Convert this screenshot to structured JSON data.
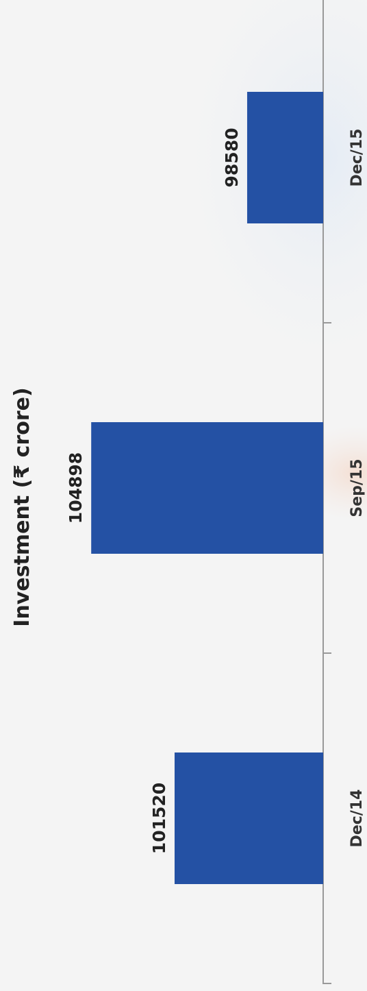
{
  "chart_data": {
    "type": "bar",
    "orientation": "vertical (rotated 90° clockwise)",
    "title": "Investment (₹ crore)",
    "categories": [
      "Dec/14",
      "Sep/15",
      "Dec/15"
    ],
    "values": [
      101520,
      104898,
      98580
    ],
    "data_labels": [
      "101520",
      "104898",
      "98580"
    ],
    "xlabel": "",
    "ylabel": "",
    "grid": false,
    "legend": "none",
    "colors": {
      "bar": "#2451a4",
      "axis": "#999999",
      "background": "#f4f4f4"
    }
  }
}
